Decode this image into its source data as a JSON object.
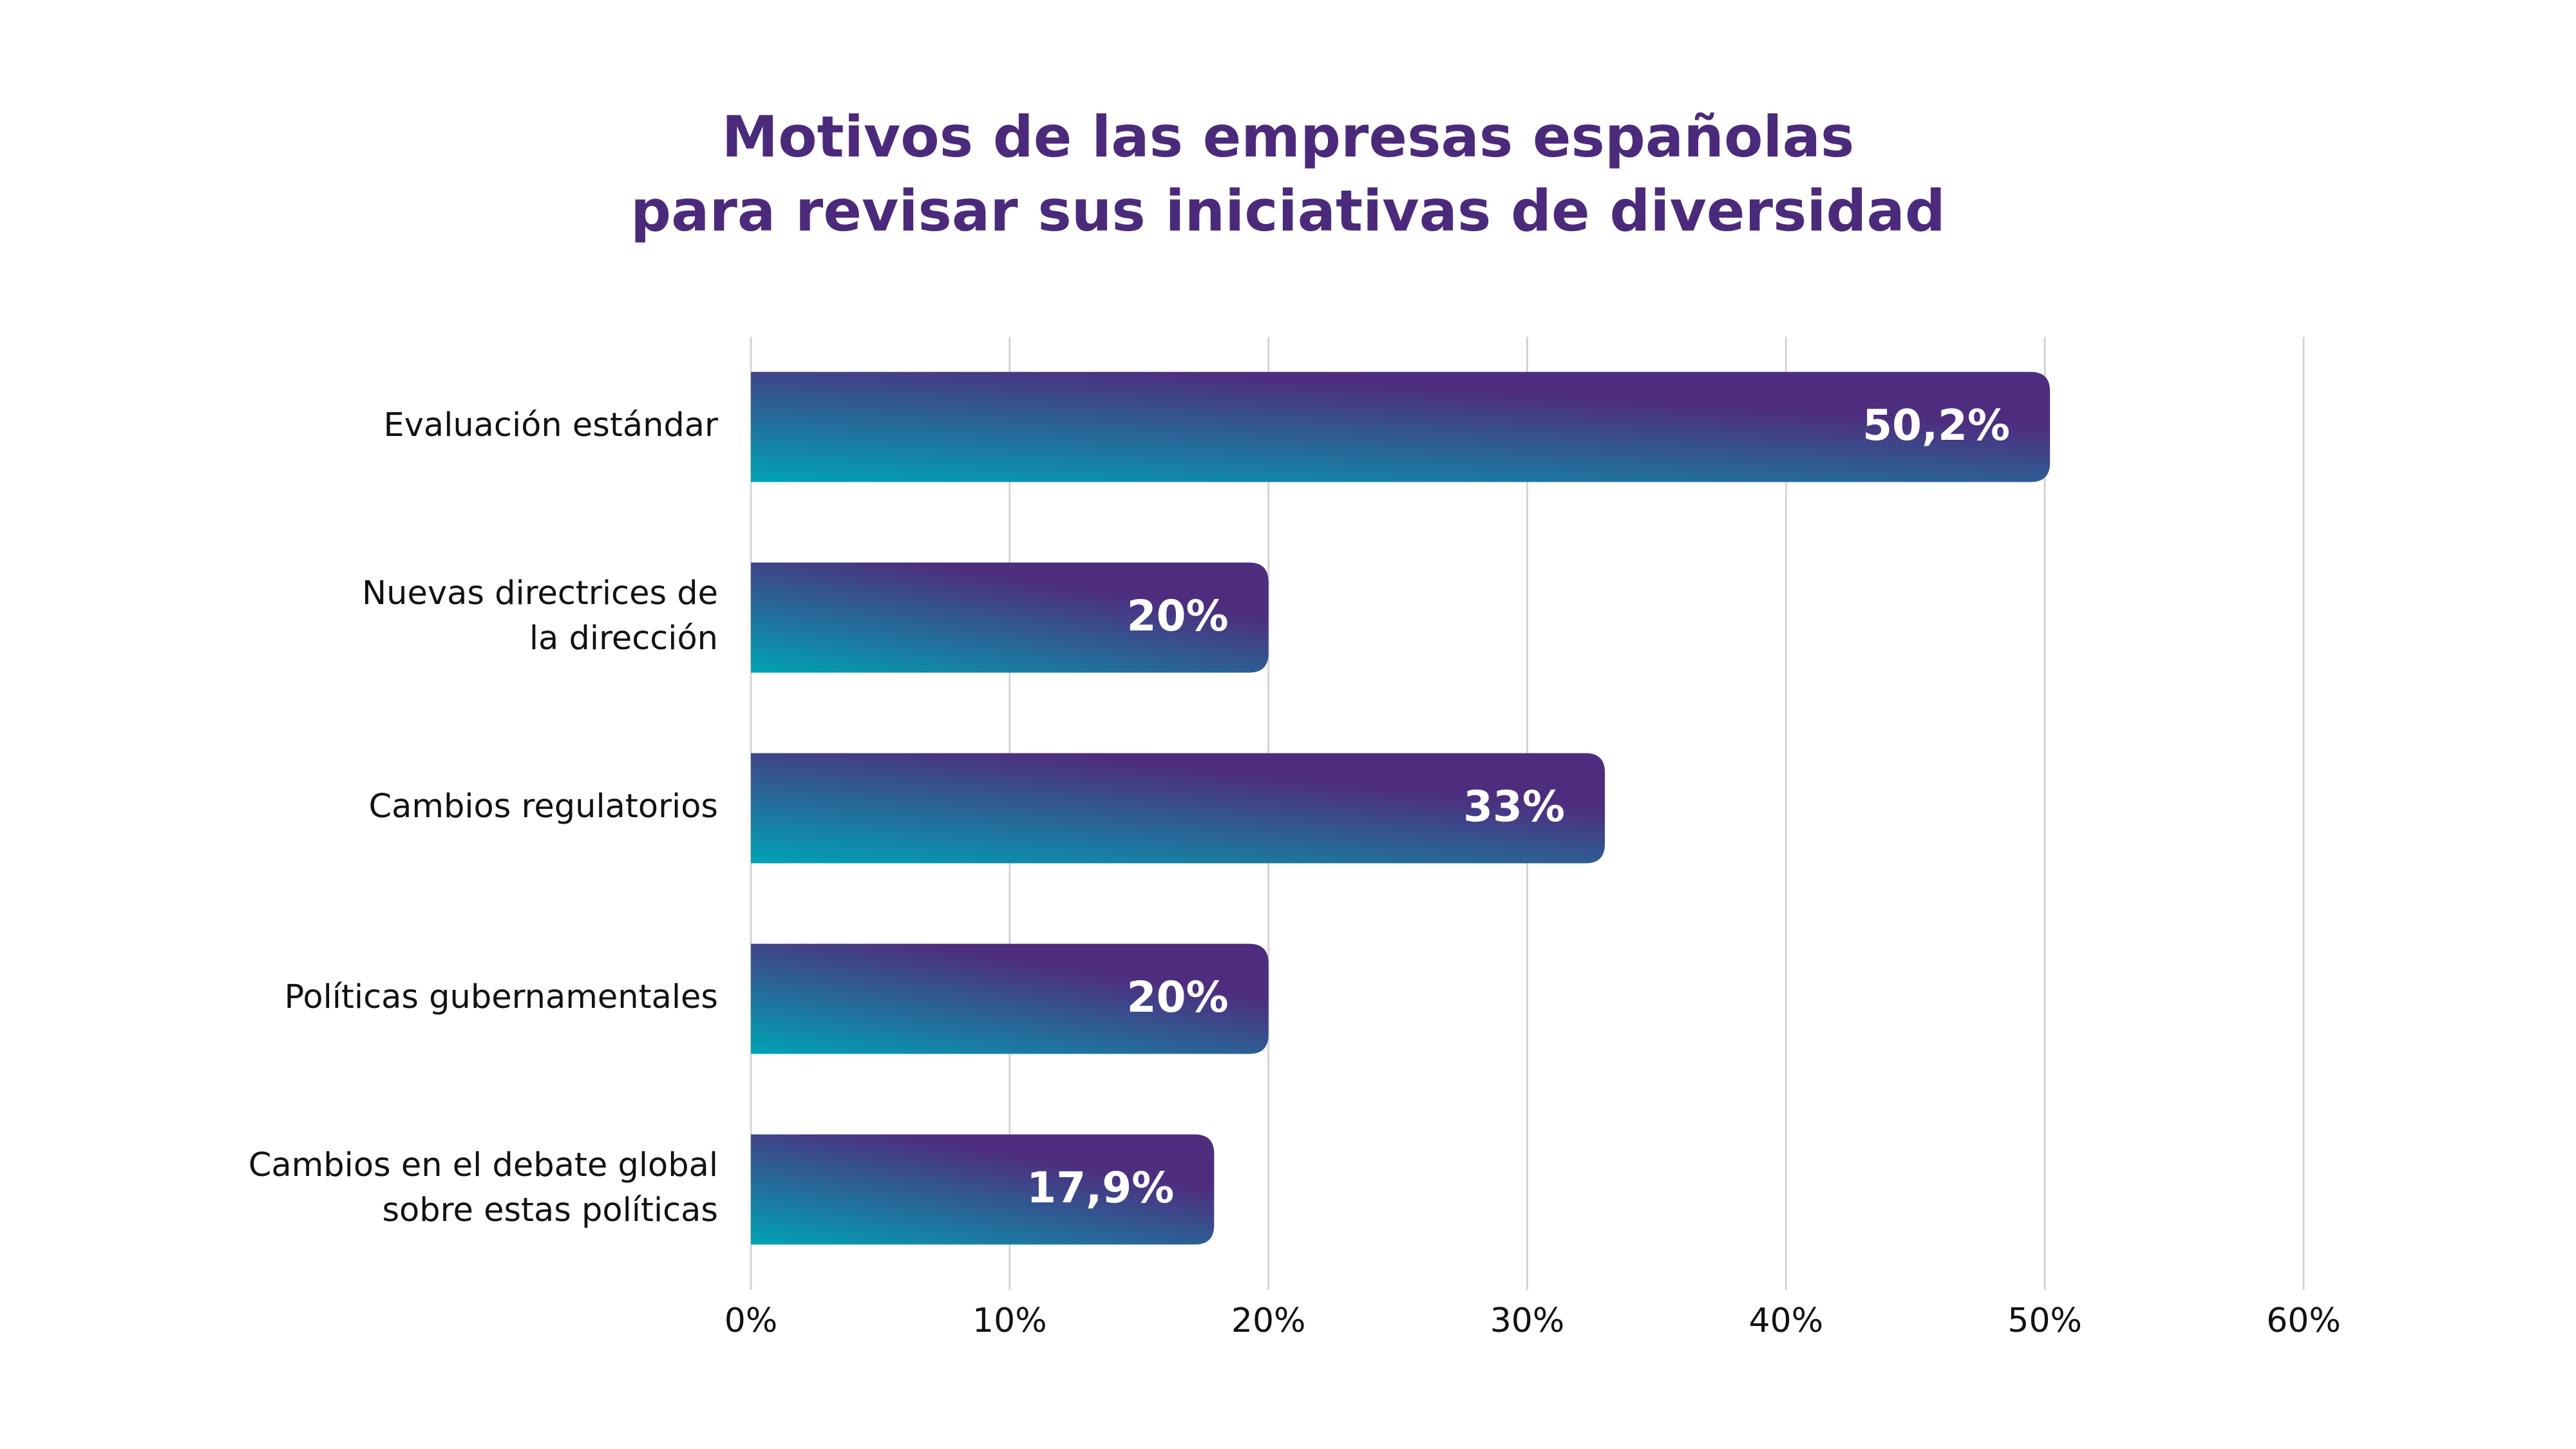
{
  "chart_data": {
    "type": "bar",
    "orientation": "horizontal",
    "title": [
      "Motivos de las empresas españolas",
      "para revisar sus iniciativas de diversidad"
    ],
    "categories": [
      [
        "Evaluación estándar"
      ],
      [
        "Nuevas directrices de",
        "la dirección"
      ],
      [
        "Cambios regulatorios"
      ],
      [
        "Políticas gubernamentales"
      ],
      [
        "Cambios en el debate global",
        "sobre estas políticas"
      ]
    ],
    "values": [
      50.2,
      20,
      33,
      20,
      17.9
    ],
    "value_labels": [
      "50,2%",
      "20%",
      "33%",
      "20%",
      "17,9%"
    ],
    "color": [
      "#00a3b4",
      "#4e2d7e"
    ],
    "xlim": [
      0,
      60
    ],
    "xticks": [
      {
        "value": 0,
        "label": "0%"
      },
      {
        "value": 10,
        "label": "10%"
      },
      {
        "value": 20,
        "label": "20%"
      },
      {
        "value": 30,
        "label": "30%"
      },
      {
        "value": 40,
        "label": "40%"
      },
      {
        "value": 50,
        "label": "50%"
      },
      {
        "value": 60,
        "label": "60%"
      }
    ],
    "grid": true
  }
}
